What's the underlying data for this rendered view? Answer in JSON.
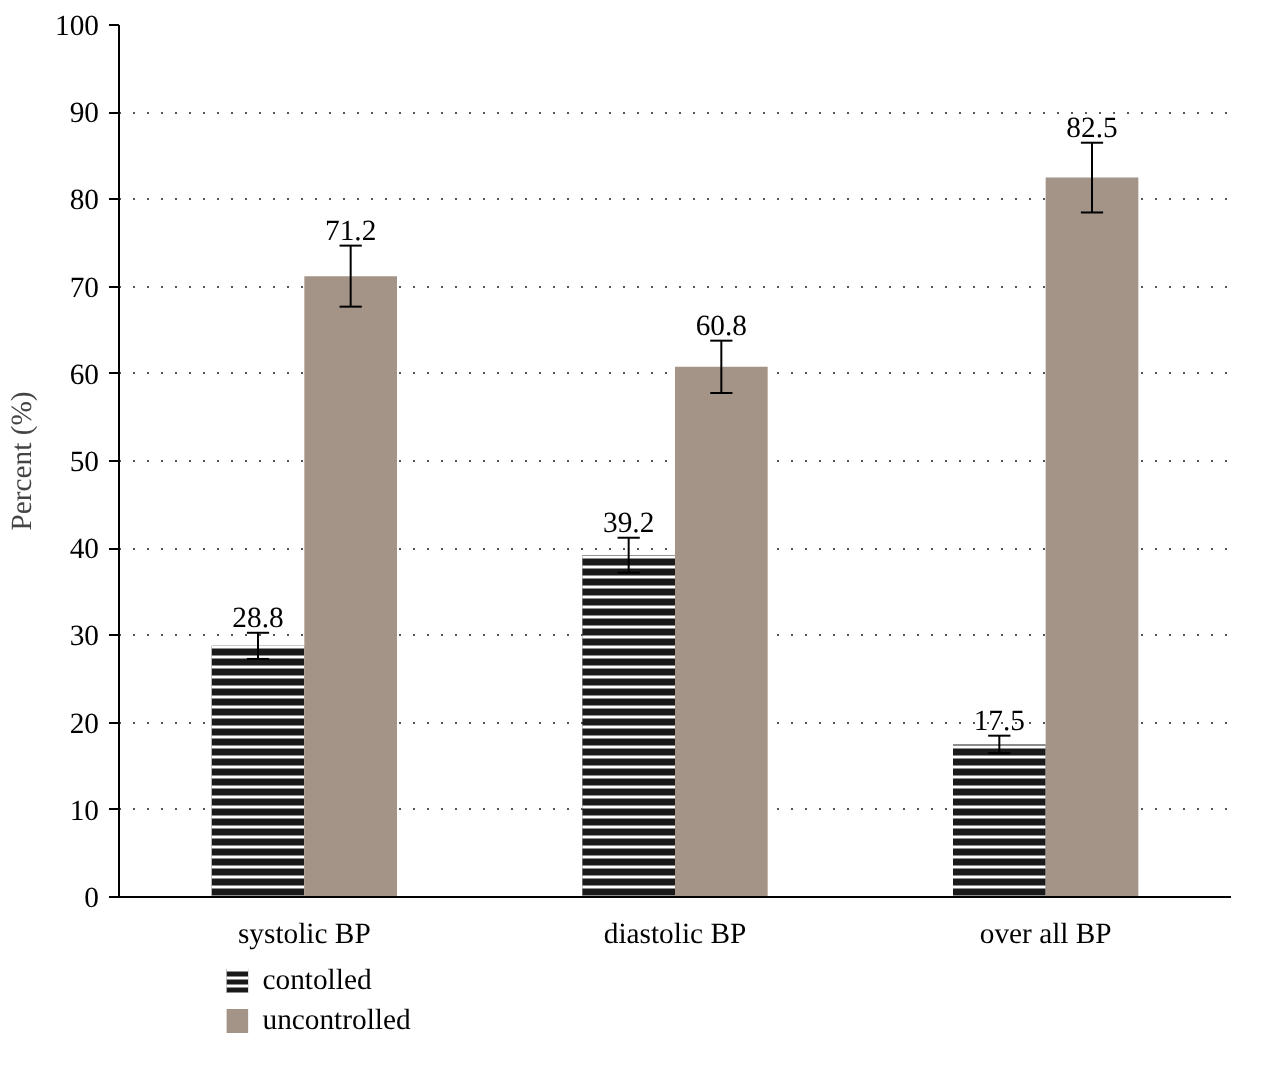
{
  "chart_data": {
    "type": "bar",
    "ylabel": "Percent (%)",
    "categories": [
      "systolic BP",
      "diastolic BP",
      "over all BP"
    ],
    "series": [
      {
        "name": "contolled",
        "color": "#1a1a1a",
        "values": [
          28.8,
          39.2,
          17.5
        ],
        "errors": [
          1.5,
          2.0,
          1.0
        ]
      },
      {
        "name": "uncontrolled",
        "color": "#a39487",
        "values": [
          71.2,
          60.8,
          82.5
        ],
        "errors": [
          3.5,
          3.0,
          4.0
        ]
      }
    ],
    "ylim": [
      0,
      100
    ],
    "yticks": [
      0,
      10,
      20,
      30,
      40,
      50,
      60,
      70,
      80,
      90,
      100
    ],
    "grid": "y",
    "legend": "bottom",
    "data_labels": true
  }
}
